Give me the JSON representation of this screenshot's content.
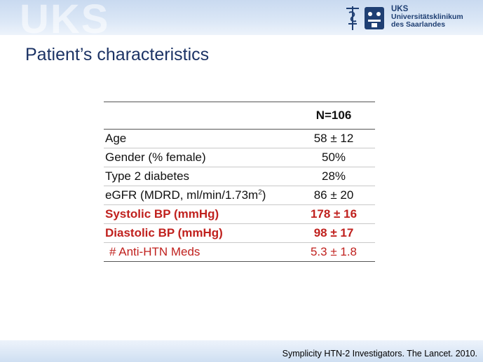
{
  "header": {
    "watermark": "UKS",
    "logo_abbrev": "UKS",
    "logo_line1": "Universitätsklinikum",
    "logo_line2": "des Saarlandes"
  },
  "slide": {
    "title": "Patient’s characteristics"
  },
  "table": {
    "column_header": "N=106",
    "rows": [
      {
        "label": "Age",
        "value": "58 ± 12"
      },
      {
        "label": "Gender (% female)",
        "value": "50%"
      },
      {
        "label": "Type 2 diabetes",
        "value": "28%"
      },
      {
        "label_prefix": "eGFR (MDRD, ml/min/1.73m",
        "label_sup": "2",
        "label_suffix": ")",
        "value": "86 ± 20"
      },
      {
        "label": "Systolic BP (mmHg)",
        "value": "178 ± 16",
        "highlight": true
      },
      {
        "label": "Diastolic BP (mmHg)",
        "value": "98 ± 17",
        "highlight": true
      },
      {
        "label": "# Anti-HTN Meds",
        "value": "5.3 ± 1.8"
      }
    ]
  },
  "footer": {
    "citation": "Symplicity HTN-2 Investigators. The Lancet. 2010."
  },
  "colors": {
    "title": "#1c3365",
    "highlight": "#c0211e",
    "logo": "#1f3f73"
  }
}
